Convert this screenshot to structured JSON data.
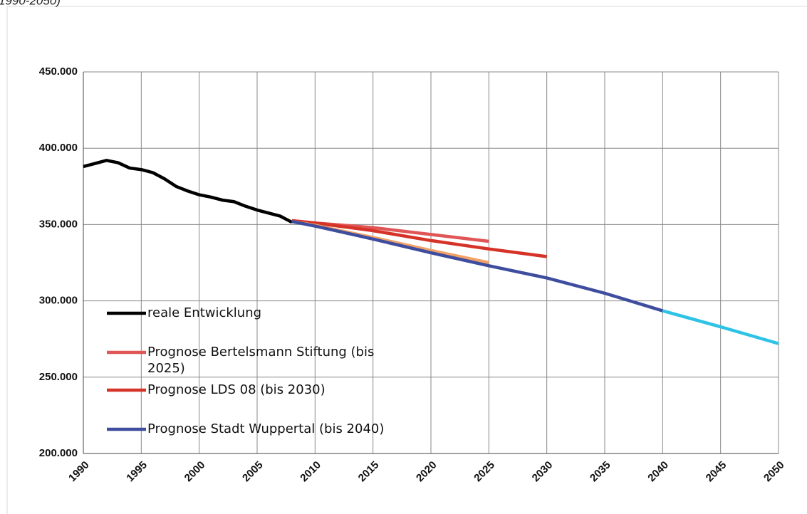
{
  "chart_data": {
    "type": "line",
    "title": "1990-2050)",
    "xlim": [
      1990,
      2050
    ],
    "xticks": [
      1990,
      1995,
      2000,
      2005,
      2010,
      2015,
      2020,
      2025,
      2030,
      2035,
      2040,
      2045,
      2050
    ],
    "ylim": [
      200000,
      450000
    ],
    "yticks": [
      {
        "value": 200000,
        "label": "200.000"
      },
      {
        "value": 250000,
        "label": "250.000"
      },
      {
        "value": 300000,
        "label": "300.000"
      },
      {
        "value": 350000,
        "label": "350.000"
      },
      {
        "value": 400000,
        "label": "400.000"
      },
      {
        "value": 450000,
        "label": "450.000"
      }
    ],
    "grid": true,
    "legend": "inside-lower-left",
    "series": [
      {
        "name": "reale Entwicklung",
        "color": "#000000",
        "x": [
          1990,
          1991,
          1992,
          1993,
          1994,
          1995,
          1996,
          1997,
          1998,
          1999,
          2000,
          2001,
          2002,
          2003,
          2004,
          2005,
          2006,
          2007,
          2008
        ],
        "values": [
          388000,
          390000,
          392000,
          390500,
          387000,
          386000,
          384000,
          380000,
          375000,
          372000,
          369500,
          368000,
          366000,
          365000,
          362000,
          359500,
          357500,
          355500,
          351500
        ]
      },
      {
        "name": "Prognose Bertelsmann Stiftung (bis 2025)",
        "color": "#e05555",
        "x": [
          2008,
          2010,
          2015,
          2020,
          2025
        ],
        "values": [
          352500,
          351000,
          348000,
          343500,
          339000
        ]
      },
      {
        "name": "Prognose LDS 08 (bis 2030)",
        "color": "#d63328",
        "x": [
          2008,
          2010,
          2015,
          2020,
          2025,
          2030
        ],
        "values": [
          352500,
          351000,
          346000,
          339500,
          334000,
          329000
        ]
      },
      {
        "color": "#f2a266",
        "x": [
          2008,
          2010,
          2015,
          2020,
          2025
        ],
        "values": [
          352000,
          349500,
          341500,
          333000,
          325000
        ]
      },
      {
        "name": "Prognose Stadt Wuppertal (bis 2040)",
        "color": "#3e4d9e",
        "x": [
          2008,
          2010,
          2015,
          2020,
          2025,
          2030,
          2035,
          2040
        ],
        "values": [
          352000,
          349000,
          340500,
          331500,
          323000,
          315000,
          305000,
          293500
        ]
      },
      {
        "color": "#2ec3e6",
        "x": [
          2040,
          2045,
          2050
        ],
        "values": [
          293500,
          283000,
          272000
        ]
      }
    ]
  }
}
